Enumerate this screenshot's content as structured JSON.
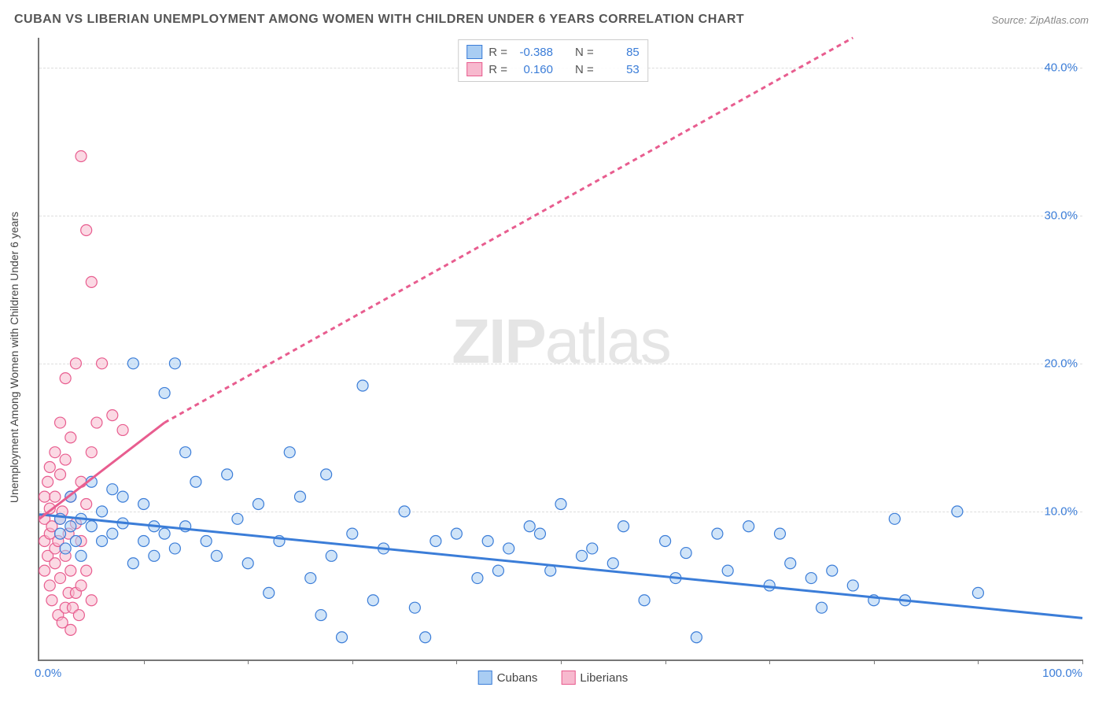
{
  "title": "CUBAN VS LIBERIAN UNEMPLOYMENT AMONG WOMEN WITH CHILDREN UNDER 6 YEARS CORRELATION CHART",
  "source": "Source: ZipAtlas.com",
  "y_axis_label": "Unemployment Among Women with Children Under 6 years",
  "watermark_a": "ZIP",
  "watermark_b": "atlas",
  "chart": {
    "type": "scatter",
    "background_color": "#ffffff",
    "grid_color": "#dddddd",
    "axis_color": "#777777",
    "tick_label_color": "#3b7dd8",
    "xlim": [
      0,
      100
    ],
    "ylim": [
      0,
      42
    ],
    "x_tick_positions": [
      10,
      20,
      30,
      40,
      50,
      60,
      70,
      80,
      90,
      100
    ],
    "y_grid": [
      {
        "value": 10,
        "label": "10.0%"
      },
      {
        "value": 20,
        "label": "20.0%"
      },
      {
        "value": 30,
        "label": "30.0%"
      },
      {
        "value": 40,
        "label": "40.0%"
      }
    ],
    "x_origin_label": "0.0%",
    "x_max_label": "100.0%",
    "marker_radius": 7,
    "marker_stroke_width": 1.2,
    "trend_line_width": 3
  },
  "series": {
    "cubans": {
      "label": "Cubans",
      "fill": "#a9cdf3",
      "stroke": "#3b7dd8",
      "fill_opacity": 0.55,
      "R": "-0.388",
      "N": "85",
      "trend": {
        "x1": 0,
        "y1": 9.8,
        "x2": 100,
        "y2": 2.8,
        "dash": "none"
      },
      "points": [
        [
          2,
          8.5
        ],
        [
          2,
          9.5
        ],
        [
          2.5,
          7.5
        ],
        [
          3,
          9
        ],
        [
          3,
          11
        ],
        [
          3.5,
          8
        ],
        [
          4,
          9.5
        ],
        [
          4,
          7
        ],
        [
          5,
          9
        ],
        [
          5,
          12
        ],
        [
          6,
          8
        ],
        [
          6,
          10
        ],
        [
          7,
          11.5
        ],
        [
          7,
          8.5
        ],
        [
          8,
          9.2
        ],
        [
          8,
          11
        ],
        [
          9,
          20
        ],
        [
          9,
          6.5
        ],
        [
          10,
          8
        ],
        [
          10,
          10.5
        ],
        [
          11,
          9
        ],
        [
          11,
          7
        ],
        [
          12,
          18
        ],
        [
          12,
          8.5
        ],
        [
          13,
          20
        ],
        [
          13,
          7.5
        ],
        [
          14,
          9
        ],
        [
          14,
          14
        ],
        [
          15,
          12
        ],
        [
          16,
          8
        ],
        [
          17,
          7
        ],
        [
          18,
          12.5
        ],
        [
          19,
          9.5
        ],
        [
          20,
          6.5
        ],
        [
          21,
          10.5
        ],
        [
          22,
          4.5
        ],
        [
          23,
          8
        ],
        [
          24,
          14
        ],
        [
          25,
          11
        ],
        [
          26,
          5.5
        ],
        [
          27,
          3
        ],
        [
          27.5,
          12.5
        ],
        [
          28,
          7
        ],
        [
          29,
          1.5
        ],
        [
          30,
          8.5
        ],
        [
          31,
          18.5
        ],
        [
          32,
          4
        ],
        [
          33,
          7.5
        ],
        [
          35,
          10
        ],
        [
          36,
          3.5
        ],
        [
          37,
          1.5
        ],
        [
          38,
          8
        ],
        [
          40,
          8.5
        ],
        [
          42,
          5.5
        ],
        [
          43,
          8
        ],
        [
          44,
          6
        ],
        [
          45,
          7.5
        ],
        [
          47,
          9
        ],
        [
          48,
          8.5
        ],
        [
          49,
          6
        ],
        [
          50,
          10.5
        ],
        [
          52,
          7
        ],
        [
          53,
          7.5
        ],
        [
          55,
          6.5
        ],
        [
          56,
          9
        ],
        [
          58,
          4
        ],
        [
          60,
          8
        ],
        [
          61,
          5.5
        ],
        [
          62,
          7.2
        ],
        [
          63,
          1.5
        ],
        [
          65,
          8.5
        ],
        [
          66,
          6
        ],
        [
          68,
          9
        ],
        [
          70,
          5
        ],
        [
          71,
          8.5
        ],
        [
          72,
          6.5
        ],
        [
          74,
          5.5
        ],
        [
          75,
          3.5
        ],
        [
          76,
          6
        ],
        [
          78,
          5
        ],
        [
          80,
          4
        ],
        [
          82,
          9.5
        ],
        [
          83,
          4
        ],
        [
          88,
          10
        ],
        [
          90,
          4.5
        ]
      ]
    },
    "liberians": {
      "label": "Liberians",
      "fill": "#f7b9ce",
      "stroke": "#e85d8f",
      "fill_opacity": 0.55,
      "R": "0.160",
      "N": "53",
      "trend_solid": {
        "x1": 0,
        "y1": 9.5,
        "x2": 12,
        "y2": 16,
        "dash": "none"
      },
      "trend_dash": {
        "x1": 12,
        "y1": 16,
        "x2": 78,
        "y2": 42,
        "dash": "6 5"
      },
      "points": [
        [
          0.5,
          6
        ],
        [
          0.5,
          8
        ],
        [
          0.5,
          9.5
        ],
        [
          0.5,
          11
        ],
        [
          0.8,
          7
        ],
        [
          0.8,
          12
        ],
        [
          1,
          5
        ],
        [
          1,
          8.5
        ],
        [
          1,
          10.2
        ],
        [
          1,
          13
        ],
        [
          1.2,
          4
        ],
        [
          1.2,
          9
        ],
        [
          1.5,
          6.5
        ],
        [
          1.5,
          7.5
        ],
        [
          1.5,
          11
        ],
        [
          1.5,
          14
        ],
        [
          1.8,
          3
        ],
        [
          1.8,
          8
        ],
        [
          2,
          5.5
        ],
        [
          2,
          9.5
        ],
        [
          2,
          12.5
        ],
        [
          2,
          16
        ],
        [
          2.2,
          2.5
        ],
        [
          2.2,
          10
        ],
        [
          2.5,
          3.5
        ],
        [
          2.5,
          7
        ],
        [
          2.5,
          13.5
        ],
        [
          2.5,
          19
        ],
        [
          2.8,
          4.5
        ],
        [
          2.8,
          8.5
        ],
        [
          3,
          2
        ],
        [
          3,
          6
        ],
        [
          3,
          11
        ],
        [
          3,
          15
        ],
        [
          3.2,
          3.5
        ],
        [
          3.5,
          4.5
        ],
        [
          3.5,
          9.2
        ],
        [
          3.5,
          20
        ],
        [
          3.8,
          3
        ],
        [
          4,
          5
        ],
        [
          4,
          8
        ],
        [
          4,
          12
        ],
        [
          4,
          34
        ],
        [
          4.5,
          6
        ],
        [
          4.5,
          10.5
        ],
        [
          4.5,
          29
        ],
        [
          5,
          4
        ],
        [
          5,
          14
        ],
        [
          5,
          25.5
        ],
        [
          5.5,
          16
        ],
        [
          6,
          20
        ],
        [
          7,
          16.5
        ],
        [
          8,
          15.5
        ]
      ]
    }
  },
  "legend_labels": {
    "r": "R =",
    "n": "N ="
  }
}
